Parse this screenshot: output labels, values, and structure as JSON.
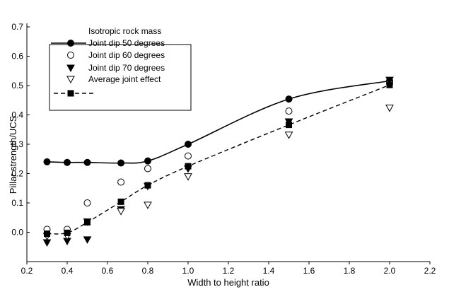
{
  "chart_data": {
    "type": "scatter",
    "title": "",
    "xlabel": "Width to height ratio",
    "ylabel": "Pillar strength/UCS",
    "xlim": [
      0.2,
      2.2
    ],
    "ylim": [
      -0.1,
      0.7
    ],
    "x_ticks": [
      "0.2",
      "0.4",
      "0.6",
      "0.8",
      "1.0",
      "1.2",
      "1.4",
      "1.6",
      "1.8",
      "2.0",
      "2.2"
    ],
    "y_ticks": [
      "0.0",
      "0.1",
      "0.2",
      "0.3",
      "0.4",
      "0.5",
      "0.6",
      "0.7"
    ],
    "grid": false,
    "legend_position": "top-left",
    "series": [
      {
        "name": "Isotropic rock mass",
        "marker": "filled-circle",
        "line": "solid",
        "x": [
          0.3,
          0.4,
          0.5,
          0.667,
          0.8,
          1.0,
          1.5,
          2.0
        ],
        "y": [
          0.24,
          0.238,
          0.238,
          0.236,
          0.243,
          0.3,
          0.454,
          0.516
        ]
      },
      {
        "name": "Joint dip 50 degrees",
        "marker": "none",
        "line": "solid",
        "x": [],
        "y": []
      },
      {
        "name": "Joint dip 60 degrees",
        "marker": "open-circle",
        "line": "none",
        "x": [
          0.3,
          0.4,
          0.5,
          0.667,
          0.8,
          1.0,
          1.5,
          2.0
        ],
        "y": [
          0.01,
          0.01,
          0.1,
          0.171,
          0.217,
          0.26,
          0.413,
          0.507
        ]
      },
      {
        "name": "Joint dip 70 degrees",
        "marker": "filled-triangle",
        "line": "none",
        "x": [
          0.3,
          0.4,
          0.5,
          0.667,
          0.8,
          1.0,
          1.5,
          2.0
        ],
        "y": [
          -0.035,
          -0.03,
          -0.025,
          0.078,
          0.157,
          0.217,
          0.377,
          0.519
        ]
      },
      {
        "name": "Average joint effect",
        "marker": "open-triangle",
        "line": "none",
        "x": [
          0.3,
          0.4,
          0.5,
          0.667,
          0.8,
          1.0,
          1.5,
          2.0
        ],
        "y": [
          -0.013,
          -0.013,
          0.036,
          0.072,
          0.093,
          0.19,
          0.332,
          0.424
        ]
      },
      {
        "name": "",
        "marker": "filled-square",
        "line": "dashed",
        "x": [
          0.3,
          0.4,
          0.5,
          0.667,
          0.8,
          1.0,
          1.5,
          2.0
        ],
        "y": [
          -0.005,
          -0.002,
          0.034,
          0.104,
          0.16,
          0.225,
          0.366,
          0.502
        ]
      }
    ],
    "legend": [
      {
        "label": "Isotropic rock mass",
        "symbol": "none"
      },
      {
        "label": "Joint dip 50 degrees",
        "symbol": "filled-circle-solid-line"
      },
      {
        "label": "Joint dip 60 degrees",
        "symbol": "open-circle"
      },
      {
        "label": "Joint dip 70 degrees",
        "symbol": "filled-triangle"
      },
      {
        "label": "Average joint effect",
        "symbol": "open-triangle"
      },
      {
        "label": "",
        "symbol": "filled-square-dashed-line"
      }
    ]
  }
}
